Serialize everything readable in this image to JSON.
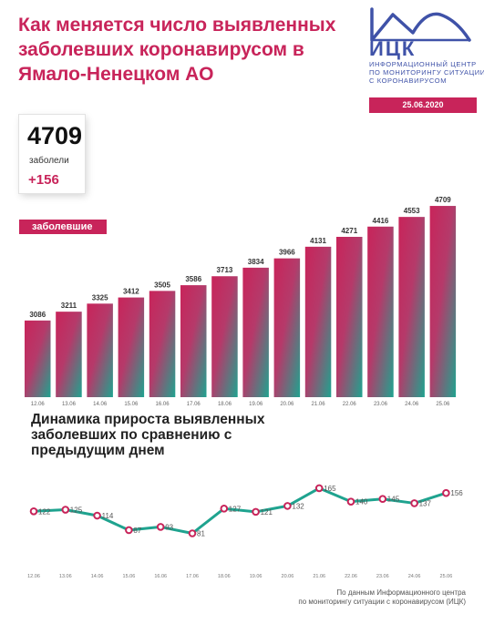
{
  "header": {
    "title": "Как меняется число выявленных заболевших коронавирусом в Ямало-Ненецком АО"
  },
  "logo": {
    "abbr": "ИЦК",
    "line1": "Информационный центр",
    "line2": "по мониторингу ситуации",
    "line3": "с коронавирусом"
  },
  "date_badge": "25.06.2020",
  "summary": {
    "total": "4709",
    "label": "заболели",
    "delta": "+156"
  },
  "series_tag": "заболевшие",
  "line_title": "Динамика прироста выявленных заболевших по сравнению с предыдущим днем",
  "source": {
    "line1": "По данным Информационного центра",
    "line2": "по мониторингу ситуации с коронавирусом (ИЦК)"
  },
  "colors": {
    "accent": "#c8245a",
    "teal": "#1fa38f",
    "logo_blue": "#3f52a8"
  },
  "chart_data": [
    {
      "type": "bar",
      "title": "",
      "categories": [
        "12.06",
        "13.06",
        "14.06",
        "15.06",
        "16.06",
        "17.06",
        "18.06",
        "19.06",
        "20.06",
        "21.06",
        "22.06",
        "23.06",
        "24.06",
        "25.06"
      ],
      "series": [
        {
          "name": "заболевшие",
          "values": [
            3086,
            3211,
            3325,
            3412,
            3505,
            3586,
            3713,
            3834,
            3966,
            4131,
            4271,
            4416,
            4553,
            4709
          ]
        }
      ],
      "ylim": [
        2000,
        4800
      ],
      "grid": false,
      "legend": "top-left"
    },
    {
      "type": "line",
      "title": "Динамика прироста выявленных заболевших по сравнению с предыдущим днем",
      "categories": [
        "12.06",
        "13.06",
        "14.06",
        "15.06",
        "16.06",
        "17.06",
        "18.06",
        "19.06",
        "20.06",
        "21.06",
        "22.06",
        "23.06",
        "24.06",
        "25.06"
      ],
      "series": [
        {
          "values": [
            122,
            125,
            114,
            87,
            93,
            81,
            127,
            121,
            132,
            165,
            140,
            145,
            137,
            156
          ]
        }
      ],
      "ylim": [
        70,
        175
      ],
      "grid": false
    }
  ]
}
